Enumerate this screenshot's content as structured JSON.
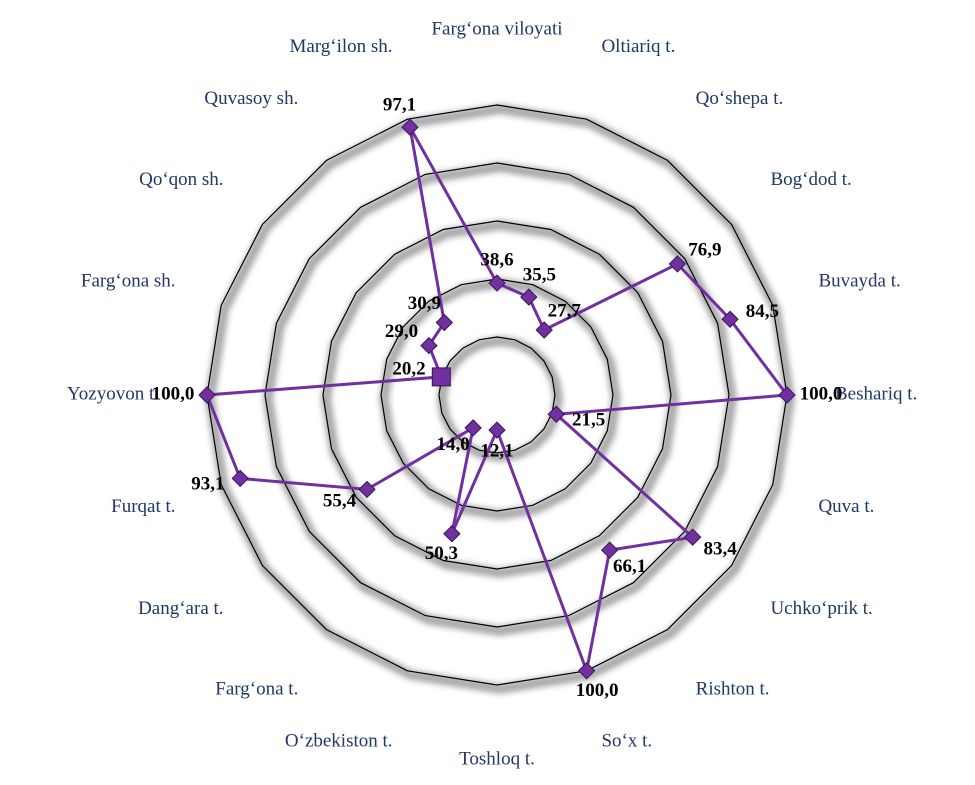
{
  "chart_data": {
    "type": "radar",
    "categories": [
      "Farg‘ona viloyati",
      "Oltiariq t.",
      "Qo‘shepa t.",
      "Bog‘dod t.",
      "Buvayda t.",
      "Beshariq t.",
      "Quva t.",
      "Uchko‘prik t.",
      "Rishton t.",
      "So‘x t.",
      "Toshloq t.",
      "O‘zbekiston t.",
      "Farg‘ona t.",
      "Dang‘ara t.",
      "Furqat t.",
      "Yozyovon t.",
      "Farg‘ona sh.",
      "Qo‘qon sh.",
      "Quvasoy sh.",
      "Marg‘ilon sh."
    ],
    "values": [
      38.6,
      35.5,
      27.7,
      76.9,
      84.5,
      100.0,
      21.5,
      83.4,
      66.1,
      100.0,
      12.1,
      50.3,
      14.0,
      55.4,
      93.1,
      100.0,
      20.2,
      29.0,
      30.9,
      97.1
    ],
    "value_labels": [
      "38,6",
      "35,5",
      "27,7",
      "76,9",
      "84,5",
      "100,0",
      "21,5",
      "83,4",
      "66,1",
      "100,0",
      "12,1",
      "50,3",
      "14,0",
      "55,4",
      "93,1",
      "100,0",
      "20,2",
      "29,0",
      "30,9",
      "97,1"
    ],
    "color": "#7030a0",
    "highlight_index": 16,
    "ylim": [
      0,
      100
    ],
    "yticks": [
      0,
      20,
      40,
      60,
      80,
      100
    ],
    "grid": true
  }
}
